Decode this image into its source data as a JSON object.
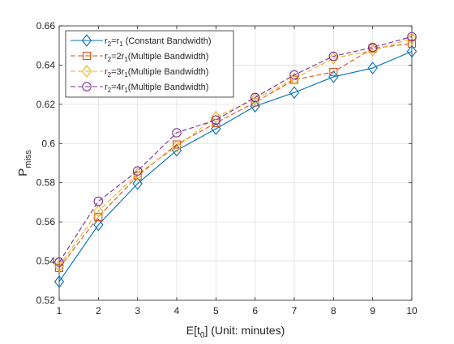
{
  "chart_data": {
    "type": "line",
    "xlabel": "E[t",
    "xlabel_sub": "0",
    "xlabel_suffix": "] (Unit: minutes)",
    "ylabel": "P",
    "ylabel_sub": "miss",
    "xlim": [
      1,
      10
    ],
    "ylim": [
      0.52,
      0.66
    ],
    "xticks": [
      1,
      2,
      3,
      4,
      5,
      6,
      7,
      8,
      9,
      10
    ],
    "yticks": [
      0.52,
      0.54,
      0.56,
      0.58,
      0.6,
      0.62,
      0.64,
      0.66
    ],
    "ytick_labels": [
      "0.52",
      "0.54",
      "0.56",
      "0.58",
      "0.6",
      "0.62",
      "0.64",
      "0.66"
    ],
    "grid": true,
    "legend_position": "top-left",
    "x": [
      1,
      2,
      3,
      4,
      5,
      6,
      7,
      8,
      9,
      10
    ],
    "series": [
      {
        "legend": [
          {
            "t": "r"
          },
          {
            "t": "2",
            "sub": true
          },
          {
            "t": "=r"
          },
          {
            "t": "1",
            "sub": true
          },
          {
            "t": " (Constant Bandwidth)"
          }
        ],
        "values": [
          0.5295,
          0.5585,
          0.5795,
          0.5965,
          0.6075,
          0.619,
          0.626,
          0.634,
          0.6385,
          0.647
        ],
        "color": "#0072BD",
        "marker": "diamond",
        "dash": "solid"
      },
      {
        "legend": [
          {
            "t": "r"
          },
          {
            "t": "2",
            "sub": true
          },
          {
            "t": "=2r"
          },
          {
            "t": "1",
            "sub": true
          },
          {
            "t": "(Multiple Bandwidth)"
          }
        ],
        "values": [
          0.5365,
          0.5625,
          0.5835,
          0.5995,
          0.6105,
          0.621,
          0.6325,
          0.6365,
          0.6485,
          0.651
        ],
        "color": "#D95319",
        "marker": "square",
        "dash": "dashed"
      },
      {
        "legend": [
          {
            "t": "r"
          },
          {
            "t": "2",
            "sub": true
          },
          {
            "t": "=3r"
          },
          {
            "t": "1",
            "sub": true
          },
          {
            "t": "(Multiple Bandwidth)"
          }
        ],
        "values": [
          0.5375,
          0.5655,
          0.5845,
          0.5985,
          0.6135,
          0.6225,
          0.633,
          0.6435,
          0.6475,
          0.6535
        ],
        "color": "#EDB120",
        "marker": "diamond",
        "dash": "dashed"
      },
      {
        "legend": [
          {
            "t": "r"
          },
          {
            "t": "2",
            "sub": true
          },
          {
            "t": "=4r"
          },
          {
            "t": "1",
            "sub": true
          },
          {
            "t": "(Multiple Bandwidth)"
          }
        ],
        "values": [
          0.5395,
          0.5705,
          0.586,
          0.6055,
          0.612,
          0.6235,
          0.635,
          0.6445,
          0.649,
          0.6545
        ],
        "color": "#7E2F8E",
        "marker": "circle",
        "dash": "dashed"
      }
    ]
  }
}
